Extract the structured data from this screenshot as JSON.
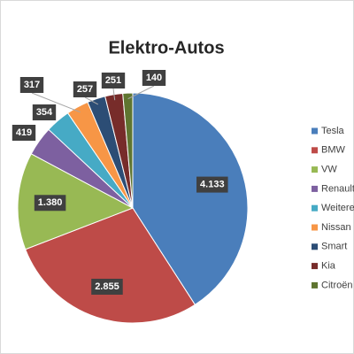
{
  "chart_data": {
    "type": "pie",
    "title": "Elektro-Autos",
    "categories": [
      "Tesla",
      "BMW",
      "VW",
      "Renault",
      "Weitere",
      "Nissan",
      "Smart",
      "Kia",
      "Citroën"
    ],
    "values": [
      4133,
      2855,
      1380,
      419,
      354,
      317,
      257,
      251,
      140
    ],
    "value_labels": [
      "4.133",
      "2.855",
      "1.380",
      "419",
      "354",
      "317",
      "257",
      "251",
      "140"
    ],
    "colors": [
      "#4a7ebb",
      "#be4b48",
      "#98b954",
      "#7d60a0",
      "#46aac5",
      "#f79646",
      "#2c4d75",
      "#772c2a",
      "#5f7530"
    ],
    "legend": "right"
  }
}
